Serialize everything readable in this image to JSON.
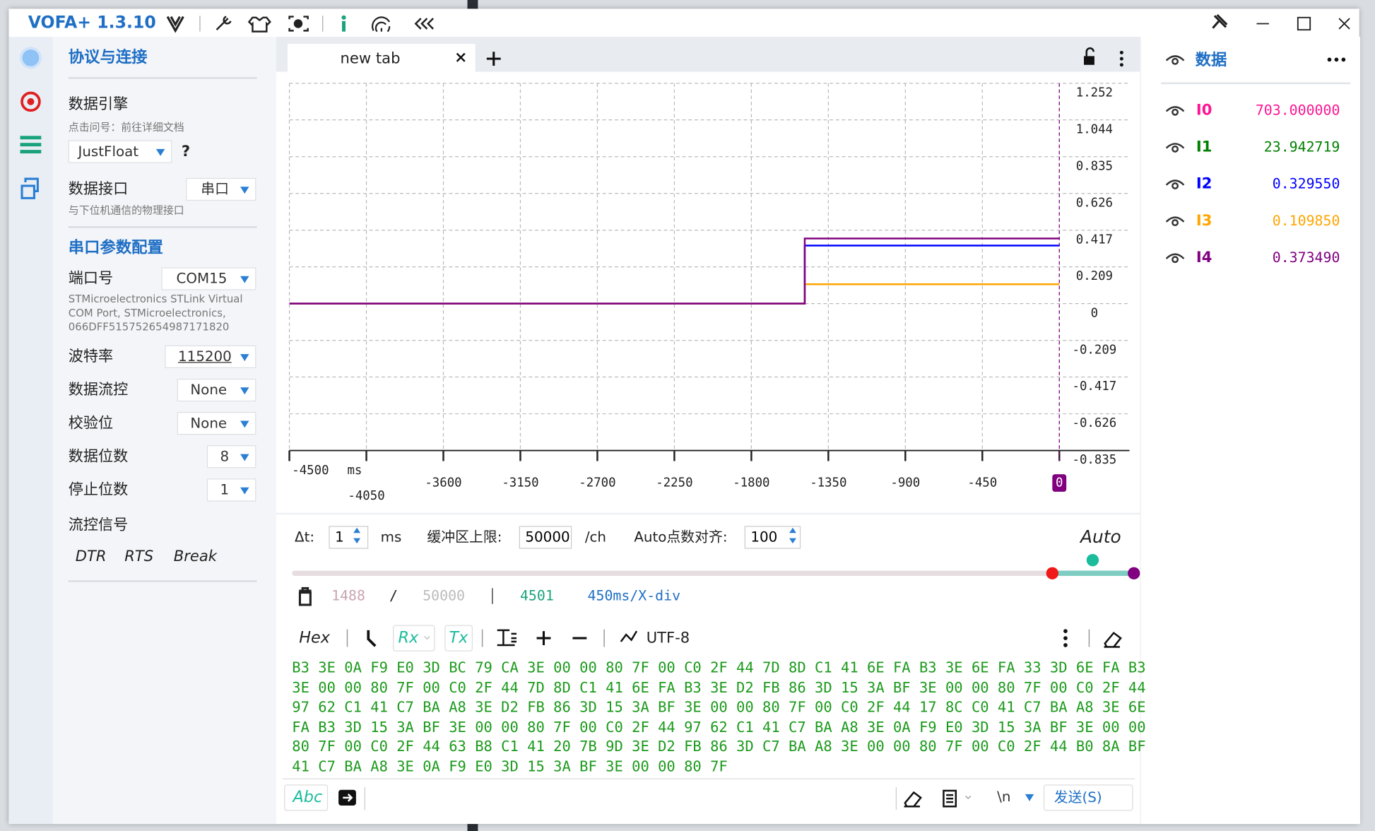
{
  "titlebar": {
    "title": "VOFA+ 1.3.10"
  },
  "sidebar": {
    "section1": "协议与连接",
    "engine": {
      "label": "数据引擎",
      "hint": "点击问号：前往详细文档",
      "value": "JustFloat",
      "help": "?"
    },
    "interface": {
      "label": "数据接口",
      "value": "串口",
      "hint": "与下位机通信的物理接口"
    },
    "section2": "串口参数配置",
    "port": {
      "label": "端口号",
      "value": "COM15",
      "description": [
        "STMicroelectronics STLink Virtual",
        "COM Port, STMicroelectronics,",
        "066DFF515752654987171820"
      ]
    },
    "params": [
      {
        "label": "波特率",
        "value": "115200"
      },
      {
        "label": "数据流控",
        "value": "None"
      },
      {
        "label": "校验位",
        "value": "None"
      },
      {
        "label": "数据位数",
        "value": "8"
      },
      {
        "label": "停止位数",
        "value": "1"
      }
    ],
    "flow": {
      "label": "流控信号",
      "signals": [
        "DTR",
        "RTS",
        "Break"
      ]
    }
  },
  "tab": {
    "label": "new tab"
  },
  "plot": {
    "type": "line",
    "x_unit": "ms",
    "xlim": [
      -4500,
      0
    ],
    "xticks": [
      -4500,
      -4050,
      -3600,
      -3150,
      -2700,
      -2250,
      -1800,
      -1350,
      -900,
      -450,
      0
    ],
    "ylim": [
      -0.835,
      1.252
    ],
    "yticks": [
      1.252,
      1.044,
      0.835,
      0.626,
      0.417,
      0.209,
      0,
      -0.209,
      -0.417,
      -0.626,
      -0.835
    ],
    "grid": true,
    "series": [
      {
        "color": "#0000ff",
        "x": [
          -4500,
          -1488,
          -1488,
          0
        ],
        "values": [
          0,
          0,
          0.33,
          0.33
        ]
      },
      {
        "color": "#ffa500",
        "x": [
          -4500,
          -1488,
          -1488,
          0
        ],
        "values": [
          0,
          0,
          0.11,
          0.11
        ]
      },
      {
        "color": "#800080",
        "x": [
          -4500,
          -1488,
          -1488,
          0
        ],
        "values": [
          0,
          0,
          0.37,
          0.37
        ]
      }
    ]
  },
  "controls": {
    "dt_label": "Δt:",
    "dt_value": "1",
    "dt_unit": "ms",
    "buffer_label": "缓冲区上限:",
    "buffer_value": "50000",
    "buffer_unit": "/ch",
    "align_label": "Auto点数对齐:",
    "align_value": "100",
    "mode": "Auto"
  },
  "stats": {
    "count": "1488",
    "separator": "/",
    "limit": "50000",
    "points": "4501",
    "scale": "450ms/X-div"
  },
  "toolbar": {
    "hex": "Hex",
    "rx": "Rx",
    "tx": "Tx",
    "encoding": "UTF-8"
  },
  "rx_data": [
    "B3 3E 0A F9 E0 3D BC 79 CA 3E 00 00 80 7F 00 C0 2F 44 7D 8D C1 41 6E FA B3 3E 6E FA 33 3D 6E FA B3",
    "3E 00 00 80 7F 00 C0 2F 44 7D 8D C1 41 6E FA B3 3E D2 FB 86 3D 15 3A BF 3E 00 00 80 7F 00 C0 2F 44",
    "97 62 C1 41 C7 BA A8 3E D2 FB 86 3D 15 3A BF 3E 00 00 80 7F 00 C0 2F 44 17 8C C0 41 C7 BA A8 3E 6E",
    "FA B3 3D 15 3A BF 3E 00 00 80 7F 00 C0 2F 44 97 62 C1 41 C7 BA A8 3E 0A F9 E0 3D 15 3A BF 3E 00 00",
    "80 7F 00 C0 2F 44 63 B8 C1 41 20 7B 9D 3E D2 FB 86 3D C7 BA A8 3E 00 00 80 7F 00 C0 2F 44 B0 8A BF",
    "41 C7 BA A8 3E 0A F9 E0 3D 15 3A BF 3E 00 00 80 7F"
  ],
  "input": {
    "format": "Abc",
    "line_ending": "\\n",
    "send": "发送(S)"
  },
  "data_panel": {
    "title": "数据",
    "channels": [
      {
        "name": "I0",
        "color": "#ff1493",
        "value": "703.000000"
      },
      {
        "name": "I1",
        "color": "#008000",
        "value": "23.942719"
      },
      {
        "name": "I2",
        "color": "#0000ff",
        "value": "0.329550"
      },
      {
        "name": "I3",
        "color": "#ffa500",
        "value": "0.109850"
      },
      {
        "name": "I4",
        "color": "#800080",
        "value": "0.373490"
      }
    ]
  }
}
